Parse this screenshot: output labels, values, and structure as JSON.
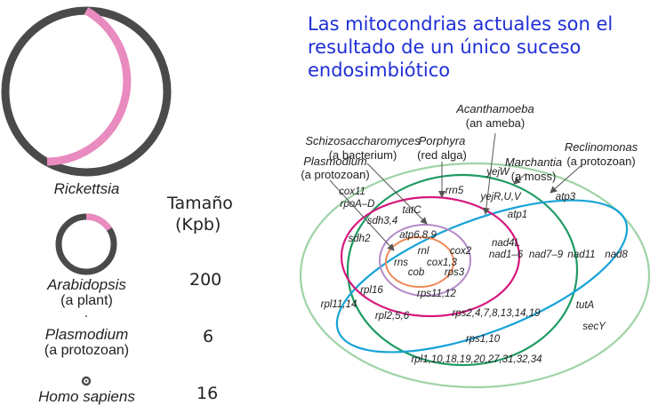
{
  "title": "Las mitocondrias actuales son el resultado de un único suceso endosimbiótico",
  "size_header": {
    "line1": "Tamaño",
    "line2": "(Kpb)"
  },
  "genomes": [
    {
      "name": "Rickettsia",
      "subtitle": "",
      "size": ""
    },
    {
      "name": "Arabidopsis",
      "subtitle": "(a plant)",
      "size": "200"
    },
    {
      "name": "Plasmodium",
      "subtitle": "(a protozoan)",
      "size": "6"
    },
    {
      "name": "Homo sapiens",
      "subtitle": "",
      "size": "16"
    }
  ],
  "organisms": {
    "acanthamoeba": {
      "name": "Acanthamoeba",
      "sub": "(an ameba)"
    },
    "schizosaccharomyces": {
      "name": "Schizosaccharomyces",
      "sub": "(a bacterium)"
    },
    "porphyra": {
      "name": "Porphyra",
      "sub": "(red alga)"
    },
    "reclinomonas": {
      "name": "Reclinomonas",
      "sub": "(a protozoan)"
    },
    "marchantia": {
      "name": "Marchantia",
      "sub": "(a moss)"
    },
    "plasmodium": {
      "name": "Plasmodium",
      "sub": "(a protozoan)"
    }
  },
  "genes": {
    "yejW": "yejW",
    "rrn5": "rrn5",
    "cox11": "cox11",
    "rpoA_D": "rpoA–D",
    "yejRUV": "yejR,U,V",
    "atp3": "atp3",
    "tatC": "tatC",
    "atp1": "atp1",
    "sdh34": "sdh3,4",
    "atp689": "atp6,8,9",
    "sdh2": "sdh2",
    "nad4L": "nad4L",
    "nad1_6": "nad1–6",
    "nad7_9": "nad7–9",
    "nad11": "nad11",
    "nad8": "nad8",
    "rnl": "rnl",
    "cox2": "cox2",
    "rns": "rns",
    "cox13": "cox1,3",
    "cob": "cob",
    "rps3": "rps3",
    "rpl16": "rpl16",
    "rps1112": "rps11,12",
    "rpl1114": "rpl11,14",
    "tutA": "tutA",
    "rpl256": "rpl2,5,6",
    "rps2_19": "rps2,4,7,8,13,14,19",
    "secY": "secY",
    "rps110": "rps1,10",
    "rpl_list": "rpl1,10,18,19,20,27,31,32,34"
  },
  "colors": {
    "title": "#1f2fd6",
    "genome_dark": "#4a4a4a",
    "genome_pink": "#e98bbf",
    "ring_lightgreen": "#9fd3a6",
    "ring_green": "#1e9a63",
    "ring_cyan": "#19a3d7",
    "ring_magenta": "#d6187e",
    "ring_purple": "#b38ac7",
    "ring_orange": "#ef8a5a"
  }
}
